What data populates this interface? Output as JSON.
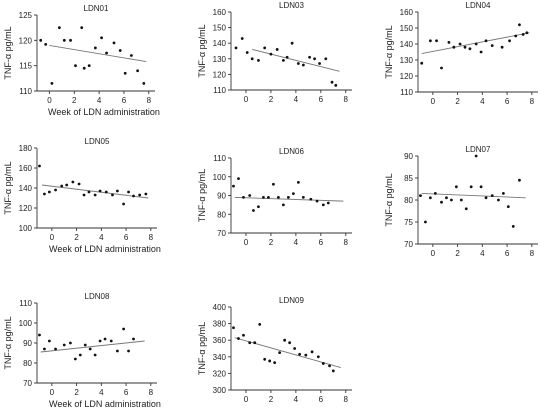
{
  "figure": {
    "panels": [
      {
        "title": "LDN01",
        "ylabel": "TNF-α pg/mL",
        "xlabel": "Week of LDN administration"
      },
      {
        "title": "LDN03",
        "ylabel": "TNF-α pg/mL",
        "xlabel": ""
      },
      {
        "title": "LDN04",
        "ylabel": "TNF-α pg/mL",
        "xlabel": ""
      },
      {
        "title": "LDN05",
        "ylabel": "TNF-α pg/mL",
        "xlabel": "Week of LDN administration"
      },
      {
        "title": "LDN06",
        "ylabel": "TNF-α pg/mL",
        "xlabel": ""
      },
      {
        "title": "LDN07",
        "ylabel": "TNF-α pg/mL",
        "xlabel": ""
      },
      {
        "title": "LDN08",
        "ylabel": "TNF-α pg/mL",
        "xlabel": "Week of LDN administration"
      },
      {
        "title": "LDN09",
        "ylabel": "TNF-α pg/mL",
        "xlabel": ""
      }
    ]
  },
  "chart_data": [
    {
      "type": "scatter",
      "title": "LDN01",
      "xlabel": "Week of LDN administration",
      "ylabel": "TNF-α pg/mL",
      "xlim": [
        -1,
        8.5
      ],
      "ylim": [
        110,
        125
      ],
      "xticks": [
        0,
        2,
        4,
        6,
        8
      ],
      "yticks": [
        110,
        115,
        120,
        125
      ],
      "points": [
        [
          -0.7,
          120
        ],
        [
          -0.3,
          119.2
        ],
        [
          0.2,
          111.5
        ],
        [
          0.8,
          122.5
        ],
        [
          1.2,
          120
        ],
        [
          1.7,
          120
        ],
        [
          2.1,
          115
        ],
        [
          2.6,
          122.5
        ],
        [
          2.8,
          114.5
        ],
        [
          3.2,
          115
        ],
        [
          3.7,
          118.5
        ],
        [
          4.2,
          120.5
        ],
        [
          4.6,
          117.5
        ],
        [
          5.2,
          119.5
        ],
        [
          5.7,
          118
        ],
        [
          6.1,
          113.5
        ],
        [
          6.6,
          117
        ],
        [
          7.1,
          114
        ],
        [
          7.6,
          111.5
        ]
      ],
      "trend": [
        [
          0,
          119
        ],
        [
          7.8,
          115.8
        ]
      ]
    },
    {
      "type": "scatter",
      "title": "LDN03",
      "xlabel": "",
      "ylabel": "TNF-α pg/mL",
      "xlim": [
        -1.2,
        8.5
      ],
      "ylim": [
        110,
        160
      ],
      "xticks": [
        0,
        2,
        4,
        6,
        8
      ],
      "yticks": [
        110,
        120,
        130,
        140,
        150,
        160
      ],
      "points": [
        [
          -0.8,
          137
        ],
        [
          -0.3,
          143
        ],
        [
          0.1,
          134
        ],
        [
          0.5,
          130
        ],
        [
          1.0,
          129
        ],
        [
          1.5,
          137
        ],
        [
          2.0,
          133
        ],
        [
          2.5,
          136
        ],
        [
          3.0,
          129
        ],
        [
          3.3,
          131
        ],
        [
          3.7,
          140
        ],
        [
          4.2,
          127
        ],
        [
          4.6,
          126
        ],
        [
          5.1,
          131
        ],
        [
          5.5,
          130
        ],
        [
          5.9,
          127
        ],
        [
          6.4,
          130
        ],
        [
          6.9,
          115
        ],
        [
          7.2,
          113
        ]
      ],
      "trend": [
        [
          0.5,
          136
        ],
        [
          7.5,
          122
        ]
      ]
    },
    {
      "type": "scatter",
      "title": "LDN04",
      "xlabel": "",
      "ylabel": "TNF-α pg/mL",
      "xlim": [
        -1.2,
        8.5
      ],
      "ylim": [
        110,
        160
      ],
      "xticks": [
        0,
        2,
        4,
        6,
        8
      ],
      "yticks": [
        110,
        120,
        130,
        140,
        150,
        160
      ],
      "points": [
        [
          -0.9,
          128
        ],
        [
          -0.2,
          142
        ],
        [
          0.3,
          142
        ],
        [
          0.7,
          125
        ],
        [
          1.3,
          141
        ],
        [
          1.7,
          138
        ],
        [
          2.2,
          140
        ],
        [
          2.6,
          138
        ],
        [
          3.0,
          137
        ],
        [
          3.5,
          140
        ],
        [
          3.9,
          135
        ],
        [
          4.3,
          142
        ],
        [
          4.8,
          139
        ],
        [
          5.6,
          138
        ],
        [
          6.2,
          142
        ],
        [
          6.7,
          145
        ],
        [
          7.0,
          152
        ],
        [
          7.3,
          146
        ],
        [
          7.6,
          147
        ]
      ],
      "trend": [
        [
          -0.9,
          134
        ],
        [
          7.8,
          147
        ]
      ]
    },
    {
      "type": "scatter",
      "title": "LDN05",
      "xlabel": "Week of LDN administration",
      "ylabel": "TNF-α pg/mL",
      "xlim": [
        -1.2,
        8.5
      ],
      "ylim": [
        100,
        180
      ],
      "xticks": [
        0,
        2,
        4,
        6,
        8
      ],
      "yticks": [
        100,
        120,
        140,
        160,
        180
      ],
      "points": [
        [
          -1.0,
          162
        ],
        [
          -0.6,
          134
        ],
        [
          -0.2,
          136
        ],
        [
          0.3,
          138
        ],
        [
          0.8,
          142
        ],
        [
          1.2,
          143
        ],
        [
          1.7,
          146
        ],
        [
          2.2,
          144
        ],
        [
          2.6,
          133
        ],
        [
          3.0,
          136
        ],
        [
          3.5,
          133
        ],
        [
          3.9,
          137
        ],
        [
          4.4,
          136
        ],
        [
          4.9,
          133
        ],
        [
          5.3,
          137
        ],
        [
          5.8,
          124
        ],
        [
          6.2,
          136
        ],
        [
          6.6,
          132
        ],
        [
          7.1,
          133
        ],
        [
          7.6,
          134
        ]
      ],
      "trend": [
        [
          -0.8,
          143
        ],
        [
          7.8,
          130
        ]
      ]
    },
    {
      "type": "scatter",
      "title": "LDN06",
      "xlabel": "",
      "ylabel": "TNF-α pg/mL",
      "xlim": [
        -1.2,
        8.5
      ],
      "ylim": [
        70,
        110
      ],
      "xticks": [
        0,
        2,
        4,
        6,
        8
      ],
      "yticks": [
        70,
        80,
        90,
        100,
        110
      ],
      "points": [
        [
          -1.0,
          95
        ],
        [
          -0.6,
          99
        ],
        [
          -0.2,
          89
        ],
        [
          0.3,
          90
        ],
        [
          0.6,
          82
        ],
        [
          1.0,
          84
        ],
        [
          1.4,
          89
        ],
        [
          1.8,
          89
        ],
        [
          2.2,
          96
        ],
        [
          2.6,
          89
        ],
        [
          3.0,
          85
        ],
        [
          3.4,
          89
        ],
        [
          3.8,
          91
        ],
        [
          4.2,
          97
        ],
        [
          4.6,
          89
        ],
        [
          5.2,
          88
        ],
        [
          5.7,
          87
        ],
        [
          6.2,
          85
        ],
        [
          6.6,
          86
        ]
      ],
      "trend": [
        [
          -0.9,
          89
        ],
        [
          7.8,
          87
        ]
      ]
    },
    {
      "type": "scatter",
      "title": "LDN07",
      "xlabel": "",
      "ylabel": "TNF-α pg/mL",
      "xlim": [
        -1.2,
        8.5
      ],
      "ylim": [
        70,
        90
      ],
      "xticks": [
        0,
        2,
        4,
        6,
        8
      ],
      "yticks": [
        70,
        75,
        80,
        85,
        90
      ],
      "points": [
        [
          -1.0,
          81
        ],
        [
          -0.6,
          75
        ],
        [
          -0.2,
          80.5
        ],
        [
          0.2,
          81.5
        ],
        [
          0.7,
          79.5
        ],
        [
          1.1,
          80.5
        ],
        [
          1.5,
          80
        ],
        [
          1.9,
          83
        ],
        [
          2.3,
          80
        ],
        [
          2.7,
          78
        ],
        [
          3.1,
          83
        ],
        [
          3.5,
          90
        ],
        [
          3.9,
          83
        ],
        [
          4.3,
          80.5
        ],
        [
          4.8,
          81
        ],
        [
          5.3,
          80
        ],
        [
          5.7,
          81.5
        ],
        [
          6.1,
          78.5
        ],
        [
          6.5,
          74
        ],
        [
          7.0,
          84.5
        ]
      ],
      "trend": [
        [
          -0.9,
          81.5
        ],
        [
          7.5,
          80.5
        ]
      ]
    },
    {
      "type": "scatter",
      "title": "LDN08",
      "xlabel": "Week of LDN administration",
      "ylabel": "TNF-α pg/mL",
      "xlim": [
        -1.2,
        8.5
      ],
      "ylim": [
        70,
        110
      ],
      "xticks": [
        0,
        2,
        4,
        6,
        8
      ],
      "yticks": [
        70,
        80,
        90,
        100,
        110
      ],
      "points": [
        [
          -1.0,
          94
        ],
        [
          -0.6,
          87
        ],
        [
          -0.2,
          91
        ],
        [
          0.3,
          87
        ],
        [
          1.0,
          89
        ],
        [
          1.5,
          90
        ],
        [
          1.9,
          82
        ],
        [
          2.3,
          84
        ],
        [
          2.7,
          89
        ],
        [
          3.1,
          87
        ],
        [
          3.5,
          84
        ],
        [
          3.9,
          91
        ],
        [
          4.3,
          92
        ],
        [
          4.8,
          91
        ],
        [
          5.3,
          86
        ],
        [
          5.8,
          97
        ],
        [
          6.2,
          86
        ],
        [
          6.6,
          92
        ]
      ],
      "trend": [
        [
          -0.9,
          85.5
        ],
        [
          7.5,
          91
        ]
      ]
    },
    {
      "type": "scatter",
      "title": "LDN09",
      "xlabel": "",
      "ylabel": "TNF-α pg/mL",
      "xlim": [
        -1.2,
        8.5
      ],
      "ylim": [
        300,
        400
      ],
      "xticks": [
        0,
        2,
        4,
        6,
        8
      ],
      "yticks": [
        300,
        320,
        340,
        360,
        380,
        400
      ],
      "points": [
        [
          -1.0,
          375
        ],
        [
          -0.6,
          362
        ],
        [
          -0.2,
          366
        ],
        [
          0.3,
          357
        ],
        [
          0.7,
          357
        ],
        [
          1.1,
          379
        ],
        [
          1.5,
          337
        ],
        [
          1.9,
          335
        ],
        [
          2.3,
          333
        ],
        [
          2.7,
          345
        ],
        [
          3.1,
          360
        ],
        [
          3.5,
          357
        ],
        [
          3.9,
          350
        ],
        [
          4.3,
          343
        ],
        [
          4.8,
          342
        ],
        [
          5.3,
          346
        ],
        [
          5.8,
          340
        ],
        [
          6.2,
          332
        ],
        [
          6.7,
          329
        ],
        [
          7.0,
          323
        ]
      ],
      "trend": [
        [
          -0.9,
          363
        ],
        [
          7.6,
          327
        ]
      ]
    }
  ]
}
